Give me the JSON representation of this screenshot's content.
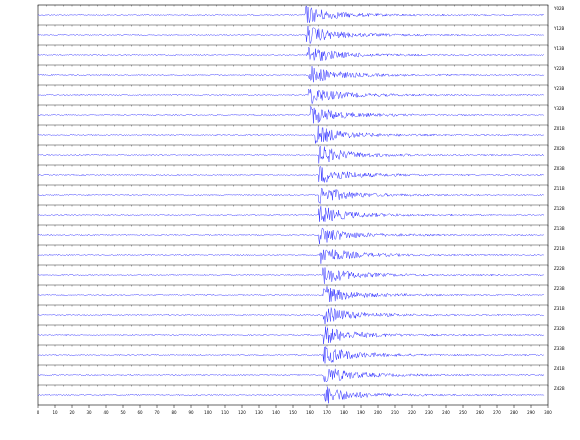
{
  "chart_data": {
    "type": "seismogram",
    "xlim": [
      0,
      300
    ],
    "xticks": [
      0,
      10,
      20,
      30,
      40,
      50,
      60,
      70,
      80,
      90,
      100,
      110,
      120,
      130,
      140,
      150,
      160,
      170,
      180,
      190,
      200,
      210,
      220,
      230,
      240,
      250,
      260,
      270,
      280,
      290,
      300
    ],
    "color": "#1a1aff",
    "series": [
      {
        "name": "Y02B",
        "arrival": 157
      },
      {
        "name": "Y12B",
        "arrival": 158
      },
      {
        "name": "Y13B",
        "arrival": 158
      },
      {
        "name": "Y22B",
        "arrival": 159
      },
      {
        "name": "Y23B",
        "arrival": 159
      },
      {
        "name": "Y32B",
        "arrival": 160
      },
      {
        "name": "Z01B",
        "arrival": 163
      },
      {
        "name": "Z02B",
        "arrival": 165
      },
      {
        "name": "Z03B",
        "arrival": 165
      },
      {
        "name": "Z11B",
        "arrival": 165
      },
      {
        "name": "Z12B",
        "arrival": 165
      },
      {
        "name": "Z13B",
        "arrival": 165
      },
      {
        "name": "Z21B",
        "arrival": 166
      },
      {
        "name": "Z22B",
        "arrival": 167
      },
      {
        "name": "Z23B",
        "arrival": 167
      },
      {
        "name": "Z31B",
        "arrival": 168
      },
      {
        "name": "Z32B",
        "arrival": 168
      },
      {
        "name": "Z33B",
        "arrival": 168
      },
      {
        "name": "Z41B",
        "arrival": 168
      },
      {
        "name": "Z42B",
        "arrival": 168
      }
    ]
  }
}
